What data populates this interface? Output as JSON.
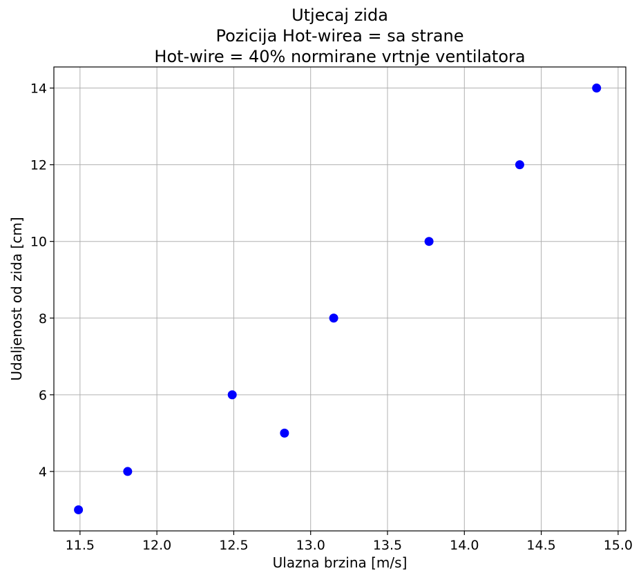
{
  "chart_data": {
    "type": "scatter",
    "title": [
      "Utjecaj zida",
      "Pozicija Hot-wirea = sa strane",
      "Hot-wire = 40% normirane vrtnje ventilatora"
    ],
    "xlabel": "Ulazna brzina [m/s]",
    "ylabel": "Udaljenost od zida [cm]",
    "xlim": [
      11.33,
      15.05
    ],
    "ylim": [
      2.45,
      14.55
    ],
    "xticks": [
      11.5,
      12.0,
      12.5,
      13.0,
      13.5,
      14.0,
      14.5,
      15.0
    ],
    "xtick_labels": [
      "11.5",
      "12.0",
      "12.5",
      "13.0",
      "13.5",
      "14.0",
      "14.5",
      "15.0"
    ],
    "yticks": [
      4,
      6,
      8,
      10,
      12,
      14
    ],
    "ytick_labels": [
      "4",
      "6",
      "8",
      "10",
      "12",
      "14"
    ],
    "grid": true,
    "marker_color": "#0000ff",
    "series": [
      {
        "x": [
          11.49,
          11.81,
          12.49,
          12.83,
          13.15,
          13.77,
          14.36,
          14.86
        ],
        "y": [
          3,
          4,
          6,
          5,
          8,
          10,
          12,
          14
        ]
      }
    ]
  }
}
